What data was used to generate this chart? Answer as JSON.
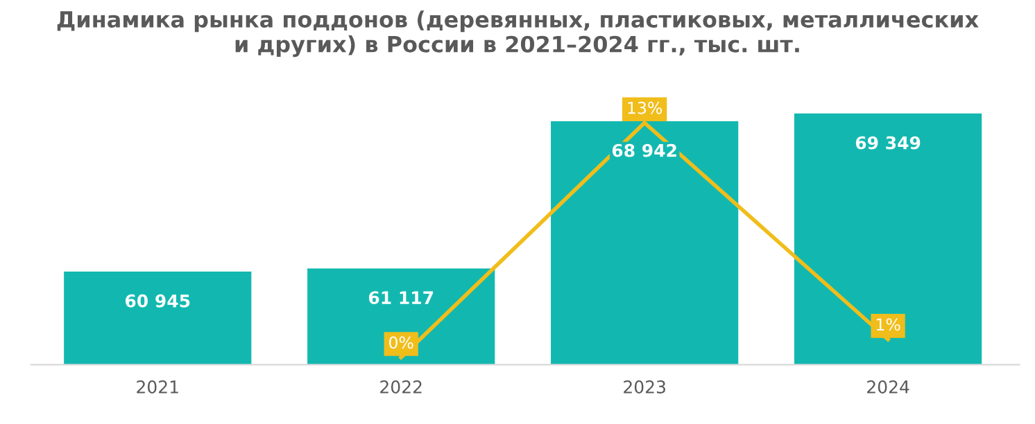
{
  "chart_data": {
    "type": "bar",
    "title": "Динамика рынка поддонов (деревянных, пластиковых, металлических\nи других) в России в 2021–2024 гг., тыс. шт.",
    "categories": [
      "2021",
      "2022",
      "2023",
      "2024"
    ],
    "series": [
      {
        "color": "#12b8b0",
        "values": [
          60945,
          61117,
          68942,
          69349
        ],
        "value_labels": [
          "60 945",
          "61 117",
          "68 942",
          "69 349"
        ]
      },
      {
        "type": "line",
        "axis": "y2",
        "color": "#f0bd1b",
        "values": [
          null,
          0,
          13,
          1
        ],
        "value_labels": [
          null,
          "0%",
          "13%",
          "1%"
        ]
      }
    ],
    "ylim": [
      56000,
      70200
    ],
    "y2lim": [
      -0.4,
      14.4
    ],
    "tick_labels": "x",
    "grid": false,
    "marker": "none",
    "line_style": "solid"
  }
}
